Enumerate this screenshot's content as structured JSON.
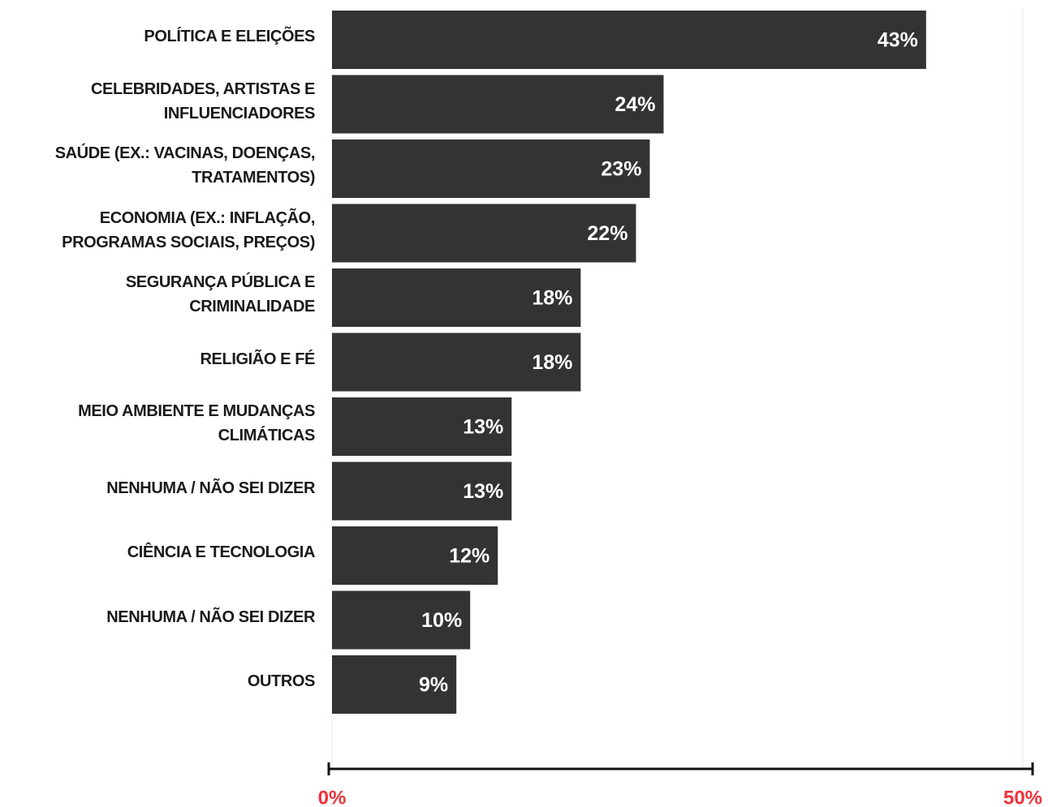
{
  "chart_data": {
    "type": "bar",
    "orientation": "horizontal",
    "categories": [
      "POLÍTICA E ELEIÇÕES",
      "CELEBRIDADES, ARTISTAS E\nINFLUENCIADORES",
      "SAÚDE (EX.: VACINAS, DOENÇAS,\nTRATAMENTOS)",
      "ECONOMIA (EX.: INFLAÇÃO,\nPROGRAMAS SOCIAIS, PREÇOS)",
      "SEGURANÇA PÚBLICA E\nCRIMINALIDADE",
      "RELIGIÃO E FÉ",
      "MEIO AMBIENTE E MUDANÇAS\nCLIMÁTICAS",
      "NENHUMA / NÃO SEI DIZER",
      "CIÊNCIA E TECNOLOGIA",
      "NENHUMA / NÃO SEI DIZER",
      "OUTROS"
    ],
    "values": [
      43,
      24,
      23,
      22,
      18,
      18,
      13,
      13,
      12,
      10,
      9
    ],
    "value_labels": [
      "43%",
      "24%",
      "23%",
      "22%",
      "18%",
      "18%",
      "13%",
      "13%",
      "12%",
      "10%",
      "9%"
    ],
    "color": "#333333",
    "xlim": [
      0,
      50
    ],
    "xticks": [
      {
        "value": 0,
        "label": "0%"
      },
      {
        "value": 50,
        "label": "50%"
      }
    ],
    "grid": true
  }
}
